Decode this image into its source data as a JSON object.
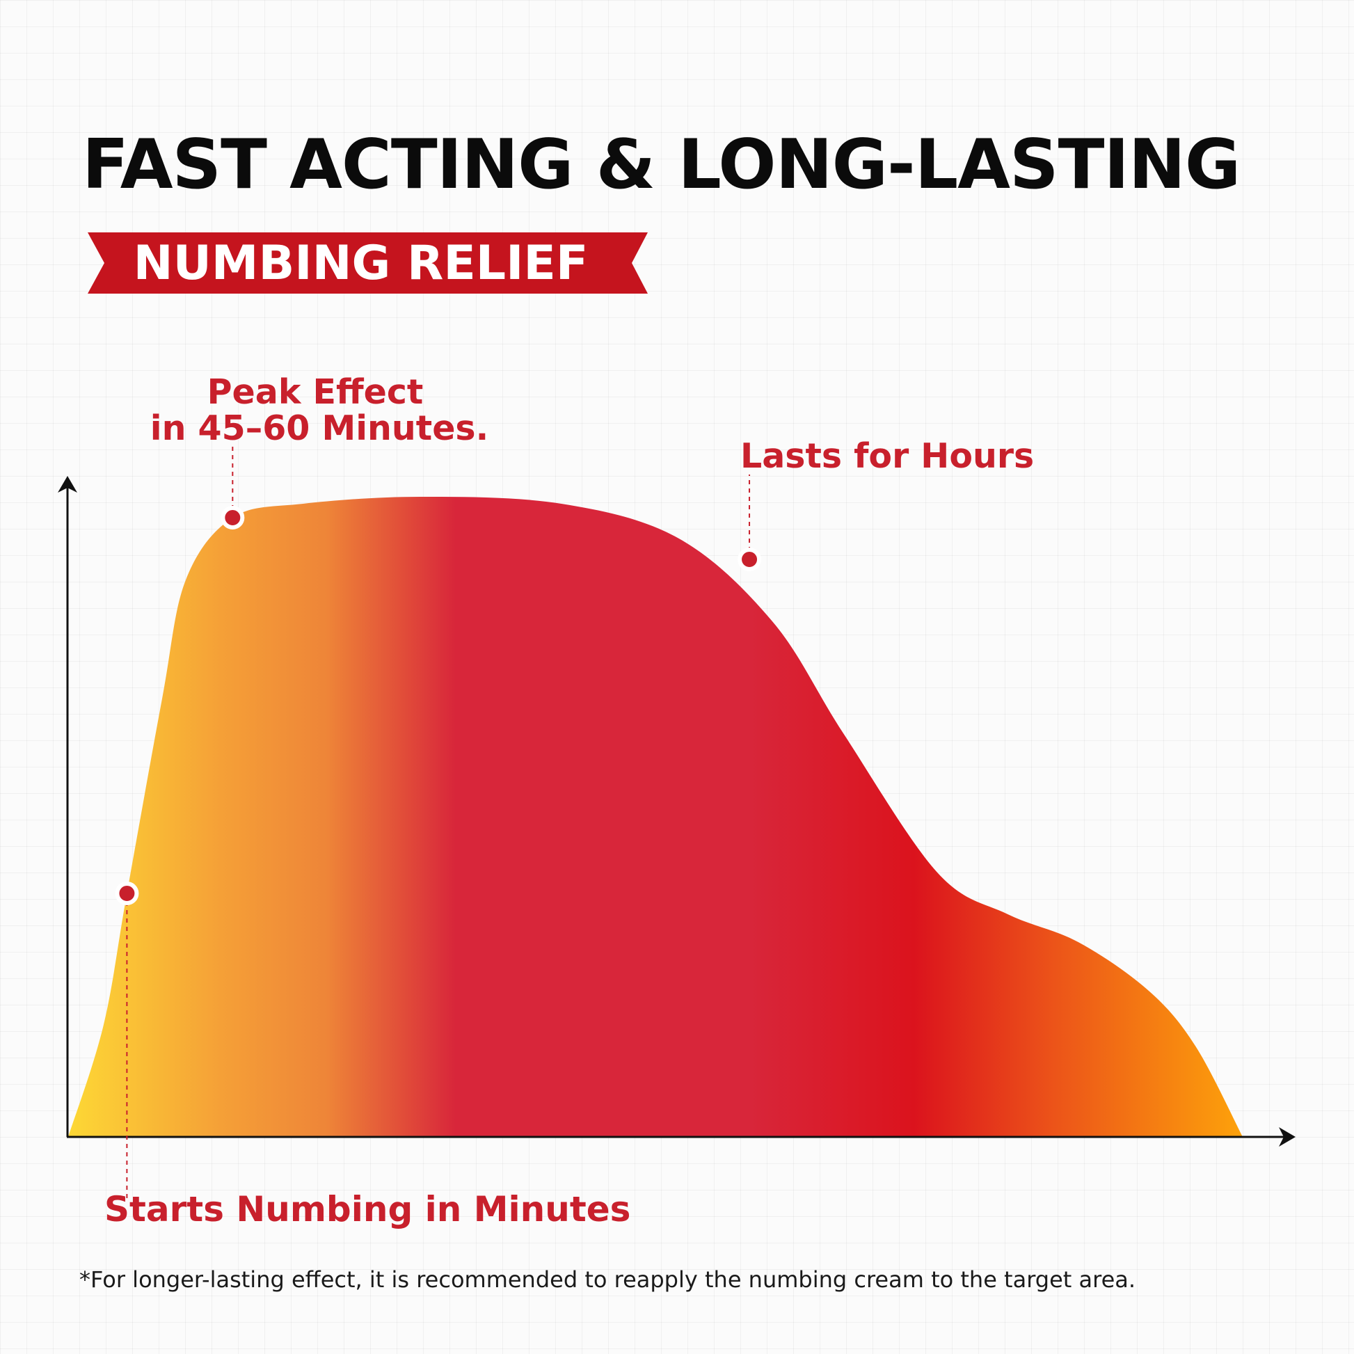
{
  "header": {
    "title": "FAST ACTING & LONG-LASTING",
    "ribbon_label": "NUMBING RELIEF"
  },
  "annotations": {
    "start": "Starts Numbing in Minutes",
    "peak_line1": "Peak Effect",
    "peak_line2": "in 45–60 Minutes.",
    "lasts": "Lasts for Hours"
  },
  "footnote": "*For longer-lasting effect, it is recommended to reapply the numbing cream to the target area.",
  "colors": {
    "accent": "#c8202c",
    "ribbon": "#c5141e",
    "gradient_yellow": "#fdd835",
    "gradient_orange": "#f5a037",
    "gradient_red": "#d8263a",
    "gradient_end": "#fda20b"
  },
  "chart_data": {
    "type": "area",
    "title": "",
    "xlabel": "",
    "ylabel": "",
    "x": [
      0,
      3,
      5,
      8,
      10,
      14,
      20,
      30,
      42,
      52,
      60,
      66,
      74,
      80,
      86,
      92,
      96,
      100
    ],
    "values": [
      0,
      16,
      35,
      63,
      80,
      89,
      91,
      92,
      91,
      86,
      74,
      58,
      38,
      32,
      28,
      21,
      13,
      0
    ],
    "xlim": [
      0,
      100
    ],
    "ylim": [
      0,
      100
    ],
    "grid": true,
    "markers": [
      {
        "x": 5,
        "y": 35,
        "label_ref": "start"
      },
      {
        "x": 14,
        "y": 89,
        "label_ref": "peak"
      },
      {
        "x": 58,
        "y": 83,
        "label_ref": "lasts"
      }
    ]
  }
}
